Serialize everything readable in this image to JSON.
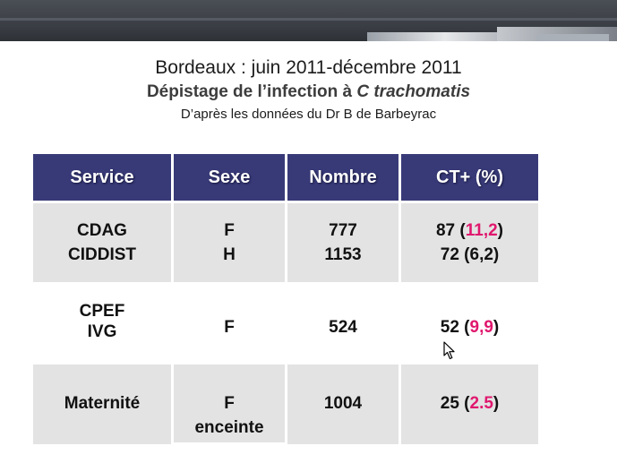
{
  "slide": {
    "title_line1": "Bordeaux : juin 2011-décembre 2011",
    "title_line2_prefix": "Dépistage de l’infection à ",
    "title_line2_italic": "C trachomatis",
    "source": "D’après les données du Dr B de Barbeyrac"
  },
  "table": {
    "headers": [
      "Service",
      "Sexe",
      "Nombre",
      "CT+ (%)"
    ],
    "rows": [
      {
        "service": [
          "CDAG",
          "CIDDIST"
        ],
        "sexe": [
          "F",
          "H"
        ],
        "nombre": [
          "777",
          "1153"
        ],
        "ct": [
          {
            "count": "87 (",
            "pct": "11,2",
            "close": ")",
            "pct_highlight": true
          },
          {
            "count": "72 (",
            "pct": "6,2",
            "close": ")",
            "pct_highlight": false
          }
        ]
      },
      {
        "service": [
          "CPEF",
          "IVG"
        ],
        "sexe": [
          "F"
        ],
        "nombre": [
          "524"
        ],
        "ct": [
          {
            "count": "52 (",
            "pct": "9,9",
            "close": ")",
            "pct_highlight": true
          }
        ]
      },
      {
        "service": [
          "Maternité"
        ],
        "sexe": [
          "F",
          "enceinte"
        ],
        "nombre": [
          "1004"
        ],
        "ct": [
          {
            "count": "25 (",
            "pct": "2.5",
            "close": ")",
            "pct_highlight": true
          }
        ]
      }
    ]
  },
  "colors": {
    "header_bg": "#383a78",
    "highlight": "#e0186e",
    "row_gray": "#e3e3e3"
  }
}
